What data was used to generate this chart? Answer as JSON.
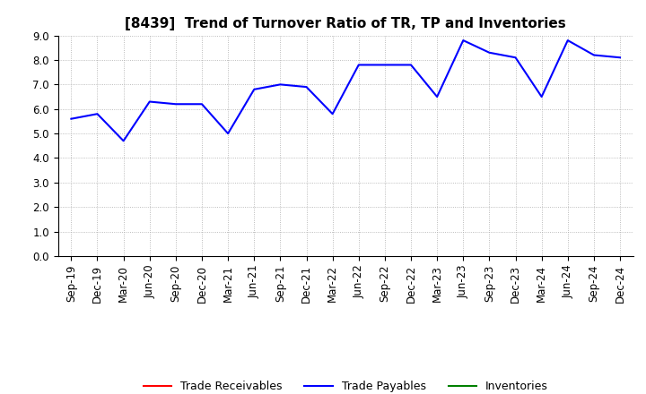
{
  "title": "[8439]  Trend of Turnover Ratio of TR, TP and Inventories",
  "x_labels": [
    "Sep-19",
    "Dec-19",
    "Mar-20",
    "Jun-20",
    "Sep-20",
    "Dec-20",
    "Mar-21",
    "Jun-21",
    "Sep-21",
    "Dec-21",
    "Mar-22",
    "Jun-22",
    "Sep-22",
    "Dec-22",
    "Mar-23",
    "Jun-23",
    "Sep-23",
    "Dec-23",
    "Mar-24",
    "Jun-24",
    "Sep-24",
    "Dec-24"
  ],
  "trade_receivables": [
    null,
    null,
    null,
    null,
    null,
    null,
    null,
    null,
    null,
    null,
    null,
    null,
    null,
    null,
    null,
    null,
    null,
    null,
    null,
    null,
    null,
    null
  ],
  "trade_payables": [
    5.6,
    5.8,
    4.7,
    6.3,
    6.2,
    6.2,
    5.0,
    6.8,
    7.0,
    6.9,
    5.8,
    7.8,
    7.8,
    7.8,
    6.5,
    8.8,
    8.3,
    8.1,
    6.5,
    8.8,
    8.2,
    8.1
  ],
  "inventories": [
    null,
    null,
    null,
    null,
    null,
    null,
    null,
    null,
    null,
    null,
    null,
    null,
    null,
    null,
    null,
    null,
    null,
    null,
    null,
    null,
    null,
    null
  ],
  "tr_color": "#ff0000",
  "tp_color": "#0000ff",
  "inv_color": "#008000",
  "ylim": [
    0.0,
    9.0
  ],
  "background_color": "#ffffff",
  "grid_color": "#aaaaaa",
  "legend_labels": [
    "Trade Receivables",
    "Trade Payables",
    "Inventories"
  ],
  "title_fontsize": 11,
  "tick_fontsize": 8.5
}
